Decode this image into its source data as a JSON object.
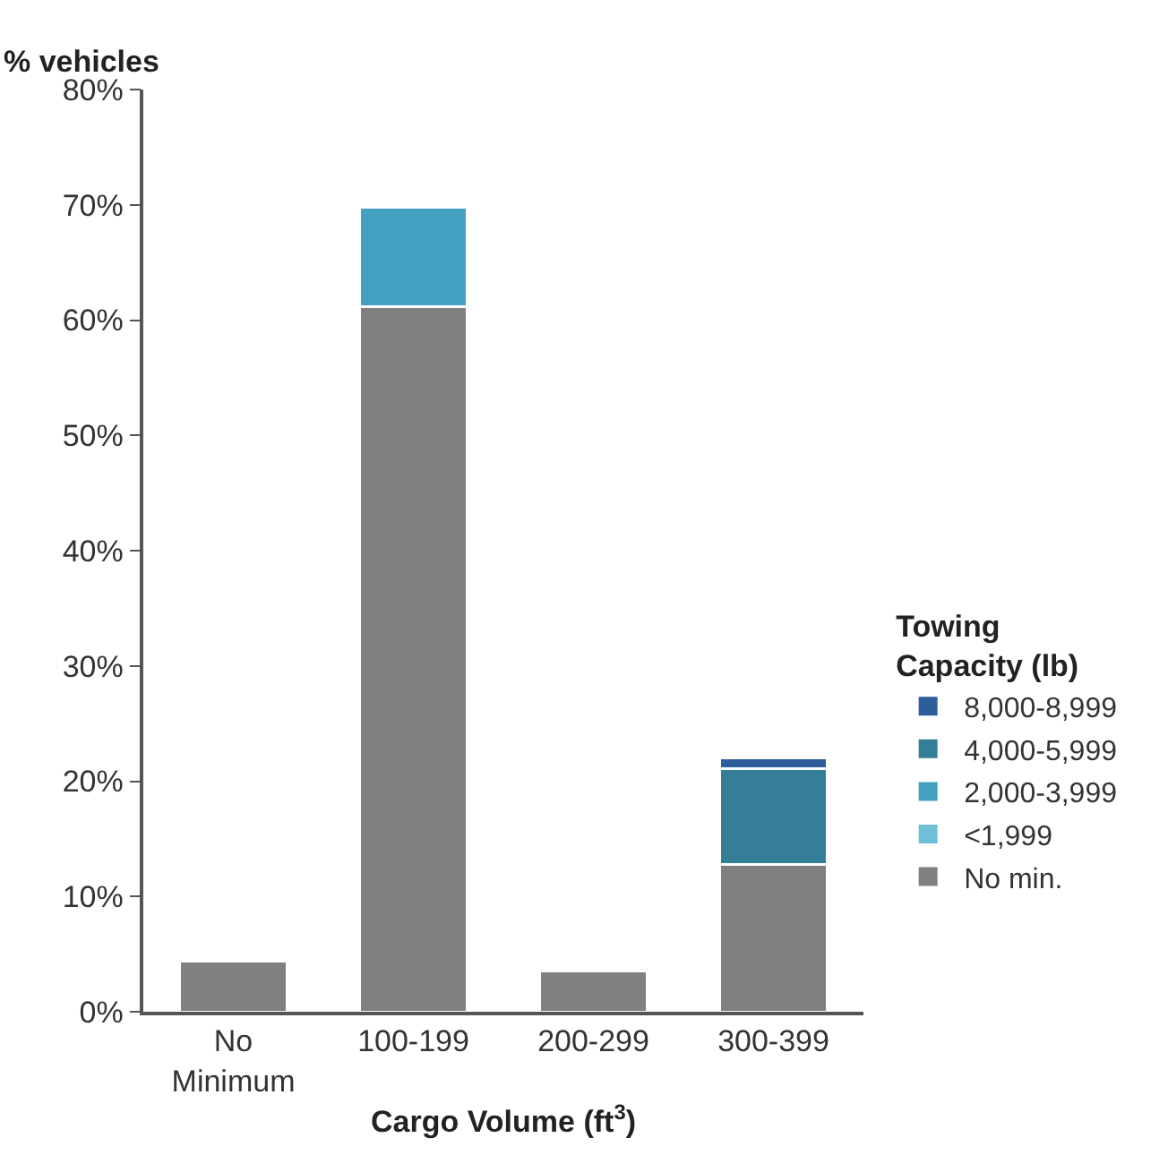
{
  "chart_data": {
    "type": "bar",
    "stacked": true,
    "ylabel": "% vehicles",
    "xlabel": "Cargo Volume (ft$^{3}$)",
    "legend_title": "Towing\nCapacity (lb)",
    "categories": [
      "No\nMinimum",
      "100-199",
      "200-299",
      "300-399"
    ],
    "series": [
      {
        "name": "No min.",
        "color": "#808080",
        "values": [
          4.4,
          61.2,
          3.5,
          12.8
        ]
      },
      {
        "name": "<1,999",
        "color": "#6fbfd8",
        "values": [
          null,
          null,
          null,
          null
        ]
      },
      {
        "name": "2,000-3,999",
        "color": "#43a0c0",
        "values": [
          null,
          8.6,
          null,
          null
        ]
      },
      {
        "name": "4,000-5,999",
        "color": "#347f97",
        "values": [
          null,
          null,
          null,
          8.3
        ]
      },
      {
        "name": "8,000-8,999",
        "color": "#2e5e9a",
        "values": [
          null,
          null,
          null,
          0.9
        ]
      }
    ],
    "ylim": [
      0,
      80
    ],
    "yticks": [
      {
        "value": 0,
        "label": "0%"
      },
      {
        "value": 10,
        "label": "10%"
      },
      {
        "value": 20,
        "label": "20%"
      },
      {
        "value": 30,
        "label": "30%"
      },
      {
        "value": 40,
        "label": "40%"
      },
      {
        "value": 50,
        "label": "50%"
      },
      {
        "value": 60,
        "label": "60%"
      },
      {
        "value": 70,
        "label": "70%"
      },
      {
        "value": 80,
        "label": "80%"
      }
    ],
    "grid": false,
    "legend": "right"
  }
}
